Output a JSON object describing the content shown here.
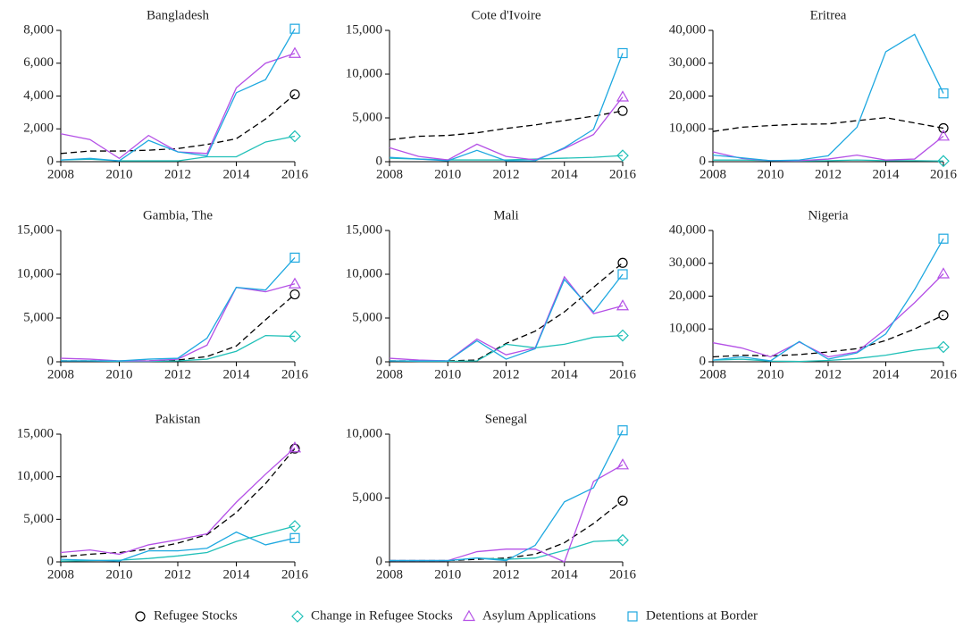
{
  "legend": [
    {
      "name": "Refugee Stocks",
      "color": "#000000",
      "marker": "circle",
      "dash": true
    },
    {
      "name": "Change in Refugee Stocks",
      "color": "#20c0b8",
      "marker": "diamond",
      "dash": false
    },
    {
      "name": "Asylum Applications",
      "color": "#b450e6",
      "marker": "triangle",
      "dash": false
    },
    {
      "name": "Detentions at Border",
      "color": "#1ea8e0",
      "marker": "square",
      "dash": false
    }
  ],
  "chart_data": [
    {
      "type": "line",
      "title": "Bangladesh",
      "x": [
        2008,
        2009,
        2010,
        2011,
        2012,
        2013,
        2014,
        2015,
        2016
      ],
      "xlim": [
        2008,
        2016
      ],
      "xticks": [
        2008,
        2010,
        2012,
        2014,
        2016
      ],
      "ylim": [
        0,
        8000
      ],
      "yticks": [
        0,
        {
          "value": 2000,
          "label": "2,000"
        },
        {
          "value": 4000,
          "label": "4,000"
        },
        {
          "value": 6000,
          "label": "6,000"
        },
        {
          "value": 8000,
          "label": "8,000"
        }
      ],
      "series": [
        {
          "values": [
            500,
            650,
            650,
            700,
            800,
            1050,
            1400,
            2600,
            4100
          ]
        },
        {
          "values": [
            100,
            150,
            50,
            50,
            50,
            300,
            300,
            1200,
            1550
          ]
        },
        {
          "values": [
            1700,
            1350,
            200,
            1600,
            600,
            500,
            4500,
            6000,
            6600
          ]
        },
        {
          "values": [
            100,
            200,
            50,
            1300,
            600,
            350,
            4200,
            5000,
            8100
          ]
        }
      ]
    },
    {
      "type": "line",
      "title": "Cote d'Ivoire",
      "x": [
        2008,
        2009,
        2010,
        2011,
        2012,
        2013,
        2014,
        2015,
        2016
      ],
      "xlim": [
        2008,
        2016
      ],
      "xticks": [
        2008,
        2010,
        2012,
        2014,
        2016
      ],
      "ylim": [
        0,
        15000
      ],
      "yticks": [
        0,
        {
          "value": 5000,
          "label": "5,000"
        },
        {
          "value": 10000,
          "label": "10,000"
        },
        {
          "value": 15000,
          "label": "15,000"
        }
      ],
      "series": [
        {
          "values": [
            2500,
            2900,
            3000,
            3300,
            3800,
            4200,
            4700,
            5200,
            5800
          ]
        },
        {
          "values": [
            400,
            300,
            200,
            200,
            200,
            300,
            400,
            500,
            700
          ]
        },
        {
          "values": [
            1600,
            600,
            200,
            2000,
            600,
            200,
            1500,
            3100,
            7400
          ]
        },
        {
          "values": [
            500,
            300,
            100,
            1300,
            100,
            100,
            1600,
            3700,
            12400
          ]
        }
      ]
    },
    {
      "type": "line",
      "title": "Eritrea",
      "x": [
        2008,
        2009,
        2010,
        2011,
        2012,
        2013,
        2014,
        2015,
        2016
      ],
      "xlim": [
        2008,
        2016
      ],
      "xticks": [
        2008,
        2010,
        2012,
        2014,
        2016
      ],
      "ylim": [
        0,
        40000
      ],
      "yticks": [
        0,
        {
          "value": 10000,
          "label": "10,000"
        },
        {
          "value": 20000,
          "label": "20,000"
        },
        {
          "value": 30000,
          "label": "30,000"
        },
        {
          "value": 40000,
          "label": "40,000"
        }
      ],
      "series": [
        {
          "values": [
            9200,
            10500,
            11000,
            11400,
            11500,
            12500,
            13400,
            11800,
            10200
          ]
        },
        {
          "values": [
            500,
            500,
            300,
            200,
            300,
            500,
            300,
            300,
            200
          ]
        },
        {
          "values": [
            3000,
            1000,
            300,
            300,
            800,
            2000,
            500,
            800,
            7800
          ]
        },
        {
          "values": [
            2000,
            1200,
            300,
            500,
            1800,
            10500,
            33500,
            38800,
            20800
          ]
        }
      ]
    },
    {
      "type": "line",
      "title": "Gambia, The",
      "x": [
        2008,
        2009,
        2010,
        2011,
        2012,
        2013,
        2014,
        2015,
        2016
      ],
      "xlim": [
        2008,
        2016
      ],
      "xticks": [
        2008,
        2010,
        2012,
        2014,
        2016
      ],
      "ylim": [
        0,
        15000
      ],
      "yticks": [
        0,
        {
          "value": 5000,
          "label": "5,000"
        },
        {
          "value": 10000,
          "label": "10,000"
        },
        {
          "value": 15000,
          "label": "15,000"
        }
      ],
      "series": [
        {
          "values": [
            100,
            100,
            100,
            100,
            200,
            600,
            1800,
            4800,
            7700
          ]
        },
        {
          "values": [
            100,
            100,
            50,
            50,
            100,
            300,
            1200,
            3000,
            2900
          ]
        },
        {
          "values": [
            400,
            300,
            100,
            100,
            300,
            1900,
            8500,
            8000,
            8900
          ]
        },
        {
          "values": [
            100,
            100,
            100,
            300,
            400,
            2700,
            8500,
            8200,
            11900
          ]
        }
      ]
    },
    {
      "type": "line",
      "title": "Mali",
      "x": [
        2008,
        2009,
        2010,
        2011,
        2012,
        2013,
        2014,
        2015,
        2016
      ],
      "xlim": [
        2008,
        2016
      ],
      "xticks": [
        2008,
        2010,
        2012,
        2014,
        2016
      ],
      "ylim": [
        0,
        15000
      ],
      "yticks": [
        0,
        {
          "value": 5000,
          "label": "5,000"
        },
        {
          "value": 10000,
          "label": "10,000"
        },
        {
          "value": 15000,
          "label": "15,000"
        }
      ],
      "series": [
        {
          "values": [
            100,
            100,
            100,
            200,
            2100,
            3500,
            5700,
            8500,
            11300
          ]
        },
        {
          "values": [
            100,
            50,
            50,
            100,
            2000,
            1600,
            2000,
            2800,
            3000
          ]
        },
        {
          "values": [
            400,
            200,
            100,
            2600,
            800,
            1600,
            9700,
            5500,
            6400
          ]
        },
        {
          "values": [
            100,
            100,
            100,
            2400,
            300,
            1500,
            9400,
            5700,
            10000
          ]
        }
      ]
    },
    {
      "type": "line",
      "title": "Nigeria",
      "x": [
        2008,
        2009,
        2010,
        2011,
        2012,
        2013,
        2014,
        2015,
        2016
      ],
      "xlim": [
        2008,
        2016
      ],
      "xticks": [
        2008,
        2010,
        2012,
        2014,
        2016
      ],
      "ylim": [
        0,
        40000
      ],
      "yticks": [
        0,
        {
          "value": 10000,
          "label": "10,000"
        },
        {
          "value": 20000,
          "label": "20,000"
        },
        {
          "value": 30000,
          "label": "30,000"
        },
        {
          "value": 40000,
          "label": "40,000"
        }
      ],
      "series": [
        {
          "values": [
            1500,
            2000,
            1800,
            2200,
            3000,
            4000,
            6500,
            10000,
            14200
          ]
        },
        {
          "values": [
            500,
            800,
            200,
            100,
            400,
            1000,
            2000,
            3500,
            4500
          ]
        },
        {
          "values": [
            5800,
            4200,
            1500,
            6000,
            1500,
            3000,
            10000,
            18000,
            26800
          ]
        },
        {
          "values": [
            500,
            1500,
            300,
            6200,
            800,
            2700,
            8500,
            22000,
            37500
          ]
        }
      ]
    },
    {
      "type": "line",
      "title": "Pakistan",
      "x": [
        2008,
        2009,
        2010,
        2011,
        2012,
        2013,
        2014,
        2015,
        2016
      ],
      "xlim": [
        2008,
        2016
      ],
      "xticks": [
        2008,
        2010,
        2012,
        2014,
        2016
      ],
      "ylim": [
        0,
        15000
      ],
      "yticks": [
        0,
        {
          "value": 5000,
          "label": "5,000"
        },
        {
          "value": 10000,
          "label": "10,000"
        },
        {
          "value": 15000,
          "label": "15,000"
        }
      ],
      "series": [
        {
          "values": [
            600,
            900,
            1100,
            1500,
            2200,
            3200,
            5800,
            9200,
            13300
          ]
        },
        {
          "values": [
            100,
            150,
            200,
            400,
            700,
            1100,
            2400,
            3300,
            4200
          ]
        },
        {
          "values": [
            1100,
            1400,
            900,
            2000,
            2600,
            3300,
            7000,
            10300,
            13400
          ]
        },
        {
          "values": [
            300,
            200,
            100,
            1300,
            1300,
            1600,
            3500,
            2000,
            2800
          ]
        }
      ]
    },
    {
      "type": "line",
      "title": "Senegal",
      "x": [
        2008,
        2009,
        2010,
        2011,
        2012,
        2013,
        2014,
        2015,
        2016
      ],
      "xlim": [
        2008,
        2016
      ],
      "xticks": [
        2008,
        2010,
        2012,
        2014,
        2016
      ],
      "ylim": [
        0,
        10000
      ],
      "yticks": [
        0,
        {
          "value": 5000,
          "label": "5,000"
        },
        {
          "value": 10000,
          "label": "10,000"
        }
      ],
      "series": [
        {
          "values": [
            100,
            100,
            100,
            200,
            300,
            600,
            1500,
            3000,
            4800
          ]
        },
        {
          "values": [
            100,
            100,
            100,
            300,
            200,
            300,
            900,
            1600,
            1700
          ]
        },
        {
          "values": [
            100,
            100,
            100,
            800,
            1000,
            1000,
            0,
            6300,
            7600
          ]
        },
        {
          "values": [
            100,
            100,
            100,
            300,
            100,
            1300,
            4700,
            5800,
            10300
          ]
        }
      ]
    }
  ]
}
